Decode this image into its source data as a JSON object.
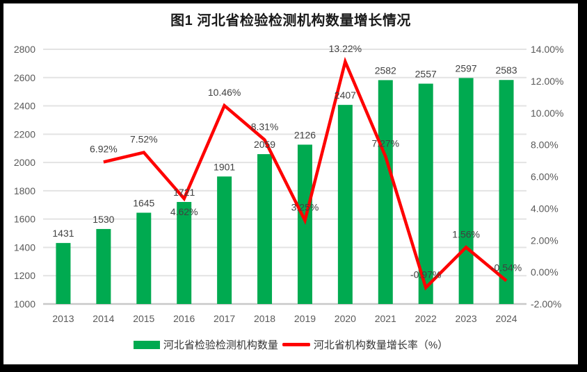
{
  "title": "图1  河北省检验检测机构数量增长情况",
  "legend": [
    {
      "label": "河北省检验检测机构数量",
      "type": "bar"
    },
    {
      "label": "河北省机构数量增长率（%）",
      "type": "line"
    }
  ],
  "colors": {
    "bar": "#00AA50",
    "line": "#FE0000",
    "grid": "#E3E3E3",
    "axis_line": "#C8C8C8",
    "tick_text": "#595959",
    "label_text": "#404040",
    "title_text": "#1A1A1A",
    "frame": "#000000"
  },
  "chart_data": {
    "type": "bar",
    "subtype": "bar-line-combo",
    "title": "图1  河北省检验检测机构数量增长情况",
    "xlabel": "",
    "ylabel": "",
    "grid": true,
    "legend_position": "bottom",
    "categories": [
      "2013",
      "2014",
      "2015",
      "2016",
      "2017",
      "2018",
      "2019",
      "2020",
      "2021",
      "2022",
      "2023",
      "2024"
    ],
    "series": [
      {
        "name": "河北省检验检测机构数量",
        "type": "bar",
        "axis": "left",
        "color": "#00AA50",
        "values": [
          1431,
          1530,
          1645,
          1721,
          1901,
          2059,
          2126,
          2407,
          2582,
          2557,
          2597,
          2583
        ],
        "labels": [
          "1431",
          "1530",
          "1645",
          "1721",
          "1901",
          "2059",
          "2126",
          "2407",
          "2582",
          "2557",
          "2597",
          "2583"
        ]
      },
      {
        "name": "河北省机构数量增长率（%）",
        "type": "line",
        "axis": "right",
        "color": "#FE0000",
        "values": [
          null,
          6.92,
          7.52,
          4.62,
          10.46,
          8.31,
          3.25,
          13.22,
          7.27,
          -0.97,
          1.56,
          -0.54
        ],
        "labels": [
          "",
          "6.92%",
          "7.52%",
          "4.62%",
          "10.46%",
          "8.31%",
          "3.25%",
          "13.22%",
          "7.27%",
          "-0.97%",
          "1.56%",
          "-0.54%"
        ],
        "label_positions": [
          "",
          "above",
          "above",
          "below",
          "above",
          "above",
          "above",
          "above",
          "above",
          "above",
          "above",
          "above"
        ]
      }
    ],
    "left_axis": {
      "min": 1000,
      "max": 2800,
      "step": 200,
      "ticks": [
        "1000",
        "1200",
        "1400",
        "1600",
        "1800",
        "2000",
        "2200",
        "2400",
        "2600",
        "2800"
      ]
    },
    "right_axis": {
      "min": -2,
      "max": 14,
      "step": 2,
      "ticks": [
        "-2.00%",
        "0.00%",
        "2.00%",
        "4.00%",
        "6.00%",
        "8.00%",
        "10.00%",
        "12.00%",
        "14.00%"
      ]
    }
  }
}
